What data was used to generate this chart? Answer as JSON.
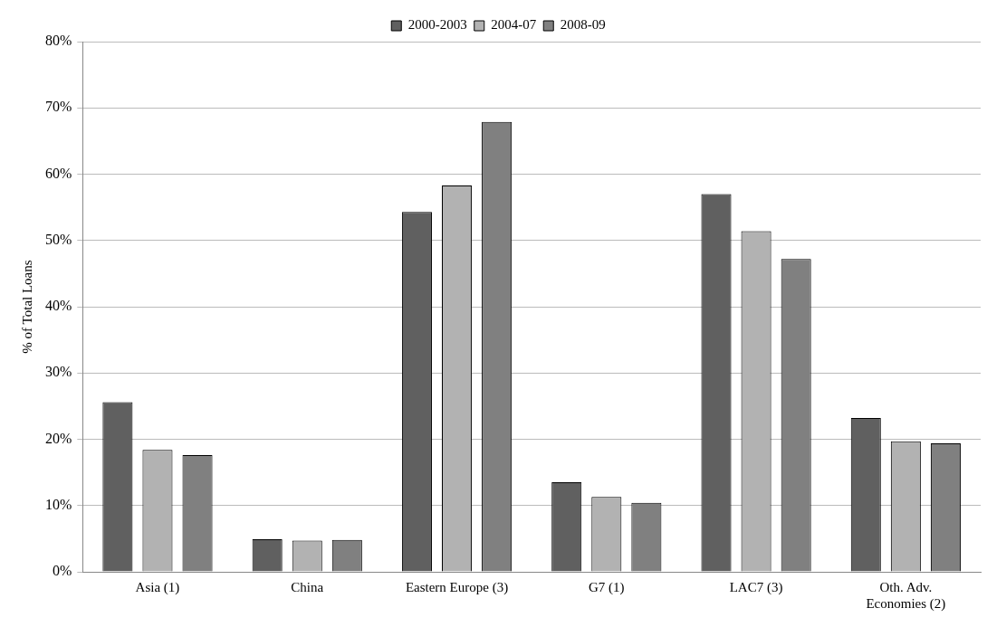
{
  "chart_data": {
    "type": "bar",
    "ylabel": "% of Total Loans",
    "categories": [
      "Asia (1)",
      "China",
      "Eastern Europe (3)",
      "G7 (1)",
      "LAC7 (3)",
      "Oth. Adv. Economies (2)"
    ],
    "series": [
      {
        "name": "2000-2003",
        "color": "#606060",
        "values": [
          25.6,
          4.9,
          54.3,
          13.5,
          57.0,
          23.2
        ]
      },
      {
        "name": "2004-07",
        "color": "#b2b2b2",
        "values": [
          18.4,
          4.7,
          58.3,
          11.3,
          51.4,
          19.7
        ]
      },
      {
        "name": "2008-09",
        "color": "#808080",
        "values": [
          17.6,
          4.8,
          67.9,
          10.4,
          47.2,
          19.4
        ]
      }
    ],
    "ylim": [
      0,
      80
    ],
    "yticks": [
      {
        "value": 0,
        "label": "0%"
      },
      {
        "value": 10,
        "label": "10%"
      },
      {
        "value": 20,
        "label": "20%"
      },
      {
        "value": 30,
        "label": "30%"
      },
      {
        "value": 40,
        "label": "40%"
      },
      {
        "value": 50,
        "label": "50%"
      },
      {
        "value": 60,
        "label": "60%"
      },
      {
        "value": 70,
        "label": "70%"
      },
      {
        "value": 80,
        "label": "80%"
      }
    ],
    "grid": "y",
    "legend": "top"
  }
}
